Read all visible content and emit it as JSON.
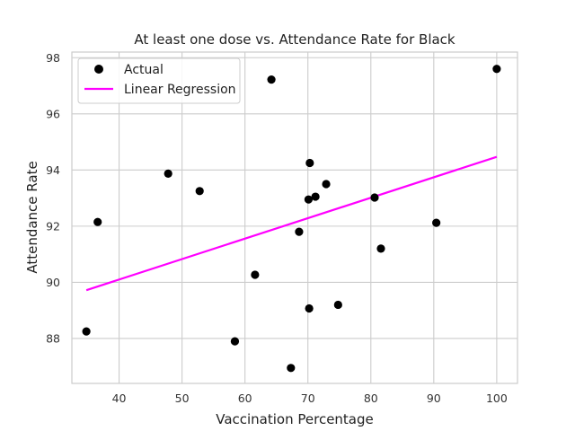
{
  "chart_data": {
    "type": "scatter",
    "title": "At least one dose vs. Attendance Rate for Black",
    "xlabel": "Vaccination Percentage",
    "ylabel": "Attendance Rate",
    "xlim": [
      32.5,
      103.3
    ],
    "ylim": [
      86.4,
      98.2
    ],
    "xticks": [
      40,
      50,
      60,
      70,
      80,
      90,
      100
    ],
    "yticks": [
      88,
      90,
      92,
      94,
      96,
      98
    ],
    "grid": true,
    "legend_position": "top-left",
    "series": [
      {
        "name": "Actual",
        "kind": "scatter",
        "color": "#000000",
        "points": [
          [
            34.8,
            88.25
          ],
          [
            36.6,
            92.15
          ],
          [
            47.8,
            93.87
          ],
          [
            52.8,
            93.25
          ],
          [
            58.4,
            87.9
          ],
          [
            61.6,
            90.27
          ],
          [
            64.2,
            97.22
          ],
          [
            67.3,
            86.95
          ],
          [
            68.6,
            91.8
          ],
          [
            70.1,
            92.95
          ],
          [
            70.2,
            89.07
          ],
          [
            70.3,
            94.25
          ],
          [
            71.2,
            93.05
          ],
          [
            72.9,
            93.5
          ],
          [
            74.8,
            89.2
          ],
          [
            80.6,
            93.02
          ],
          [
            81.6,
            91.2
          ],
          [
            90.4,
            92.12
          ],
          [
            100.0,
            97.6
          ]
        ]
      },
      {
        "name": "Linear Regression",
        "kind": "line",
        "color": "#ff00ff",
        "points": [
          [
            34.8,
            89.72
          ],
          [
            100.0,
            94.47
          ]
        ]
      }
    ]
  }
}
